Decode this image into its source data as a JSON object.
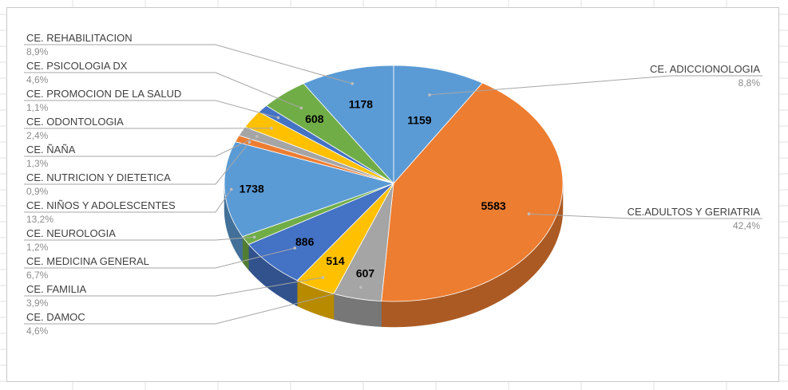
{
  "chart_data": {
    "type": "pie",
    "title": "",
    "legend": "none",
    "slices": [
      {
        "category": "CE. ADICCIONOLOGIA",
        "value": 1159,
        "percent": "8,8%",
        "color": "#5b9bd5"
      },
      {
        "category": "CE.ADULTOS Y GERIATRIA",
        "value": 5583,
        "percent": "42,4%",
        "color": "#ed7d31"
      },
      {
        "category": "CE. DAMOC",
        "value": 607,
        "percent": "4,6%",
        "color": "#a5a5a5"
      },
      {
        "category": "CE. FAMILIA",
        "value": 514,
        "percent": "3,9%",
        "color": "#ffc000"
      },
      {
        "category": "CE. MEDICINA GENERAL",
        "value": 886,
        "percent": "6,7%",
        "color": "#4472c4"
      },
      {
        "category": "CE. NEUROLOGIA",
        "value": 158,
        "percent": "1,2%",
        "color": "#70ad47"
      },
      {
        "category": "CE. NIÑOS Y ADOLESCENTES",
        "value": 1738,
        "percent": "13,2%",
        "color": "#5b9bd5"
      },
      {
        "category": "CE. NUTRICION Y DIETETICA",
        "value": 119,
        "percent": "0,9%",
        "color": "#ed7d31"
      },
      {
        "category": "CE. ÑAÑA",
        "value": 171,
        "percent": "1,3%",
        "color": "#a5a5a5"
      },
      {
        "category": "CE. ODONTOLOGIA",
        "value": 316,
        "percent": "2,4%",
        "color": "#ffc000"
      },
      {
        "category": "CE. PROMOCION DE LA SALUD",
        "value": 145,
        "percent": "1,1%",
        "color": "#4472c4"
      },
      {
        "category": "CE. PSICOLOGIA DX",
        "value": 608,
        "percent": "4,6%",
        "color": "#70ad47"
      },
      {
        "category": "CE. REHABILITACION",
        "value": 1178,
        "percent": "8,9%",
        "color": "#5b9bd5"
      }
    ],
    "data_labels_shown": [
      "CE. ADICCIONOLOGIA",
      "CE.ADULTOS Y GERIATRIA",
      "CE. DAMOC",
      "CE. FAMILIA",
      "CE. MEDICINA GENERAL",
      "CE. NIÑOS Y ADOLESCENTES",
      "CE. PSICOLOGIA DX",
      "CE. REHABILITACION"
    ]
  }
}
